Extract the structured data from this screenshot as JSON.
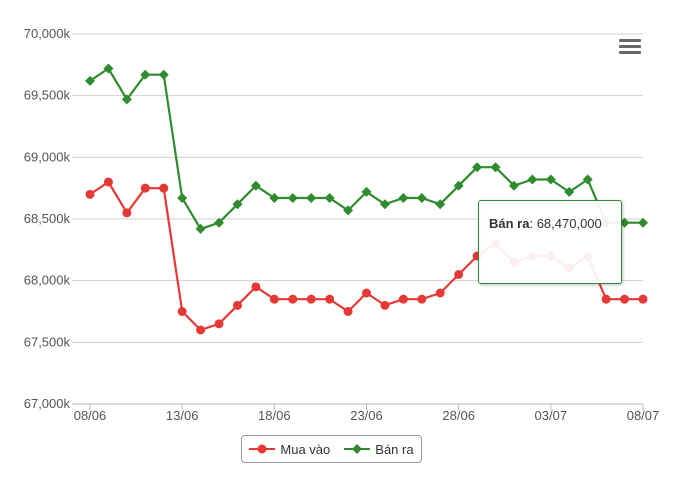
{
  "chart_data": {
    "type": "line",
    "categories": [
      "08/06",
      "09/06",
      "10/06",
      "11/06",
      "12/06",
      "13/06",
      "14/06",
      "15/06",
      "16/06",
      "17/06",
      "18/06",
      "19/06",
      "20/06",
      "21/06",
      "22/06",
      "23/06",
      "24/06",
      "25/06",
      "26/06",
      "27/06",
      "28/06",
      "29/06",
      "30/06",
      "01/07",
      "02/07",
      "03/07",
      "04/07",
      "05/07",
      "06/07",
      "07/07",
      "08/07"
    ],
    "x_tick_labels": [
      "08/06",
      "13/06",
      "18/06",
      "23/06",
      "28/06",
      "03/07",
      "08/07"
    ],
    "y_tick_labels": [
      "67,000k",
      "67,500k",
      "68,000k",
      "68,500k",
      "69,000k",
      "69,500k",
      "70,000k"
    ],
    "ylim": [
      67000,
      70000
    ],
    "grid": true,
    "series": [
      {
        "name": "Mua vào",
        "color": "#e53935",
        "marker": "circle",
        "values": [
          68700,
          68800,
          68550,
          68750,
          68750,
          67750,
          67600,
          67650,
          67800,
          67950,
          67850,
          67850,
          67850,
          67850,
          67750,
          67900,
          67800,
          67850,
          67850,
          67900,
          68050,
          68200,
          68300,
          68150,
          68200,
          68200,
          68100,
          68200,
          67850,
          67850,
          67850
        ]
      },
      {
        "name": "Bán ra",
        "color": "#2e8b2e",
        "marker": "diamond",
        "values": [
          69620,
          69720,
          69470,
          69670,
          69670,
          68670,
          68420,
          68470,
          68620,
          68770,
          68670,
          68670,
          68670,
          68670,
          68570,
          68720,
          68620,
          68670,
          68670,
          68620,
          68770,
          68920,
          68920,
          68770,
          68820,
          68820,
          68720,
          68820,
          68470,
          68470,
          68470
        ]
      }
    ],
    "legend_position": "bottom-center",
    "tooltip": {
      "series": "Bán ra",
      "label": "Bán ra",
      "value_text": "68,470,000"
    }
  }
}
